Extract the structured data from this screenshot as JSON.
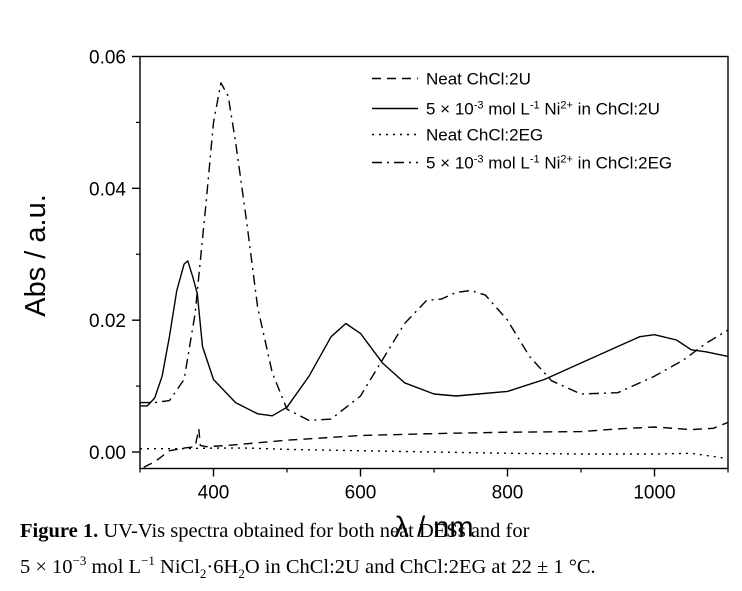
{
  "chart_data": {
    "type": "line",
    "xlabel": "λ / nm",
    "ylabel": "Abs / a.u.",
    "xlim": [
      300,
      1100
    ],
    "ylim": [
      -0.0025,
      0.06
    ],
    "x_ticks": [
      "400",
      "600",
      "800",
      "1000"
    ],
    "y_ticks": [
      "0.00",
      "0.02",
      "0.04",
      "0.06"
    ],
    "legend": "top-right",
    "series": [
      {
        "name": "Neat ChCl:2U",
        "style": "dashed",
        "x": [
          305,
          320,
          340,
          360,
          375,
          380,
          382,
          390,
          420,
          500,
          600,
          700,
          800,
          900,
          950,
          1000,
          1050,
          1080,
          1100
        ],
        "y": [
          -0.0023,
          -0.0015,
          0.0002,
          0.0006,
          0.0008,
          0.0035,
          0.001,
          0.0008,
          0.001,
          0.0018,
          0.0025,
          0.0028,
          0.003,
          0.0031,
          0.0035,
          0.0038,
          0.0034,
          0.0036,
          0.0045
        ]
      },
      {
        "name": "5 × 10-3 mol L-1 Ni2+ in ChCl:2U",
        "style": "solid",
        "x": [
          300,
          310,
          320,
          330,
          340,
          350,
          360,
          365,
          372,
          378,
          385,
          400,
          430,
          460,
          480,
          500,
          530,
          560,
          580,
          600,
          630,
          660,
          700,
          730,
          760,
          800,
          850,
          900,
          950,
          980,
          1000,
          1030,
          1050,
          1070,
          1100
        ],
        "y": [
          0.007,
          0.007,
          0.0082,
          0.0115,
          0.0175,
          0.0245,
          0.0285,
          0.029,
          0.0265,
          0.024,
          0.016,
          0.011,
          0.0075,
          0.0058,
          0.0055,
          0.0068,
          0.0115,
          0.0175,
          0.0195,
          0.018,
          0.0135,
          0.0105,
          0.0088,
          0.0085,
          0.0088,
          0.0092,
          0.011,
          0.0135,
          0.016,
          0.0175,
          0.0178,
          0.017,
          0.0155,
          0.0152,
          0.0145
        ]
      },
      {
        "name": "Neat ChCl:2EG",
        "style": "dotted",
        "x": [
          300,
          350,
          400,
          450,
          500,
          600,
          700,
          800,
          900,
          1000,
          1050,
          1100
        ],
        "y": [
          0.0005,
          0.0005,
          0.0006,
          0.0006,
          0.0004,
          0.0002,
          0.0,
          -0.0002,
          -0.0003,
          -0.0003,
          -0.0002,
          -0.001
        ]
      },
      {
        "name": "5 × 10-3 mol L-1 Ni2+ in ChCl:2EG",
        "style": "dashdot",
        "x": [
          300,
          320,
          340,
          360,
          375,
          390,
          400,
          410,
          420,
          430,
          445,
          460,
          480,
          500,
          530,
          560,
          600,
          630,
          660,
          690,
          710,
          730,
          750,
          770,
          800,
          830,
          860,
          900,
          950,
          1000,
          1040,
          1070,
          1100
        ],
        "y": [
          0.0075,
          0.0075,
          0.0078,
          0.011,
          0.021,
          0.038,
          0.05,
          0.056,
          0.054,
          0.047,
          0.035,
          0.022,
          0.012,
          0.0065,
          0.0048,
          0.005,
          0.0085,
          0.014,
          0.0195,
          0.023,
          0.0232,
          0.0242,
          0.0245,
          0.0238,
          0.02,
          0.0145,
          0.0108,
          0.0088,
          0.009,
          0.0115,
          0.014,
          0.0165,
          0.0185
        ]
      }
    ]
  },
  "legend_entries": [
    {
      "pre": "Neat ChCl:2U"
    },
    {
      "pre": "5 × 10",
      "sup1": "-3",
      "mid1": " mol L",
      "sup2": "-1",
      "mid2": " Ni",
      "sup3": "2+",
      "post": " in ChCl:2U"
    },
    {
      "pre": "Neat ChCl:2EG"
    },
    {
      "pre": "5 × 10",
      "sup1": "-3",
      "mid1": " mol L",
      "sup2": "-1",
      "mid2": " Ni",
      "sup3": "2+",
      "post": " in ChCl:2EG"
    }
  ],
  "caption": {
    "label": "Figure 1.",
    "line1": " UV-Vis spectra obtained for both neat DESs and for",
    "line2_a": "5 × 10",
    "line2_sup1": "−3",
    "line2_b": " mol L",
    "line2_sup2": "−1",
    "line2_c": " NiCl",
    "line2_sub1": "2",
    "line2_d": "·6H",
    "line2_sub2": "2",
    "line2_e": "O in ChCl:2U and ChCl:2EG at 22 ± 1 °C."
  }
}
